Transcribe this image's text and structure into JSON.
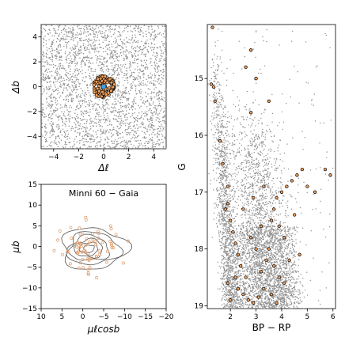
{
  "colors": {
    "field": "#8f8f8f",
    "member_fill": "#f4a05a",
    "member_edge": "#000000",
    "center_marker": "#3aa0e8",
    "contour": "#555555",
    "pm_member_edge": "#e39b68"
  },
  "chart_data": [
    {
      "id": "sky",
      "type": "scatter",
      "xlabel": "Δℓ",
      "ylabel": "Δb",
      "xlim": [
        -5,
        5
      ],
      "ylim": [
        -5,
        5
      ],
      "xticks": [
        "−4",
        "−2",
        "0",
        "2",
        "4"
      ],
      "yticks": [
        "−4",
        "−2",
        "0",
        "2",
        "4"
      ],
      "xtick_values": [
        -4,
        -2,
        0,
        2,
        4
      ],
      "ytick_values": [
        -4,
        -2,
        0,
        2,
        4
      ],
      "cluster_radius": 0.9
    },
    {
      "id": "pm",
      "type": "scatter",
      "title": "Minni 60 − Gaia",
      "xlabel": "μℓcosb",
      "ylabel": "μb",
      "xlim": [
        10,
        -20
      ],
      "ylim": [
        -15,
        15
      ],
      "xticks": [
        "10",
        "5",
        "0",
        "−5",
        "−10",
        "−15",
        "−20"
      ],
      "yticks": [
        "−15",
        "−10",
        "−5",
        "0",
        "5",
        "10",
        "15"
      ],
      "xtick_values": [
        10,
        5,
        0,
        -5,
        -10,
        -15,
        -20
      ],
      "ytick_values": [
        -15,
        -10,
        -5,
        0,
        5,
        10,
        15
      ],
      "contour_center": [
        -1.5,
        -0.5
      ]
    },
    {
      "id": "cmd",
      "type": "scatter",
      "xlabel": "BP − RP",
      "ylabel": "G",
      "xlim": [
        1.1,
        6.1
      ],
      "ylim": [
        19.05,
        14.05
      ],
      "xticks": [
        "2",
        "3",
        "4",
        "5",
        "6"
      ],
      "yticks": [
        "15",
        "16",
        "17",
        "18",
        "19"
      ],
      "xtick_values": [
        2,
        3,
        4,
        5,
        6
      ],
      "ytick_values": [
        15,
        16,
        17,
        18,
        19
      ],
      "members": [
        [
          1.3,
          14.1
        ],
        [
          1.25,
          15.1
        ],
        [
          1.35,
          15.15
        ],
        [
          1.4,
          15.4
        ],
        [
          2.8,
          14.5
        ],
        [
          2.6,
          14.8
        ],
        [
          3.0,
          15.0
        ],
        [
          2.8,
          15.6
        ],
        [
          3.5,
          15.4
        ],
        [
          1.6,
          16.1
        ],
        [
          1.7,
          16.5
        ],
        [
          1.9,
          16.9
        ],
        [
          1.8,
          17.3
        ],
        [
          2.0,
          17.5
        ],
        [
          2.1,
          17.7
        ],
        [
          2.2,
          17.9
        ],
        [
          2.3,
          18.1
        ],
        [
          2.4,
          18.3
        ],
        [
          2.2,
          18.5
        ],
        [
          2.3,
          18.7
        ],
        [
          2.5,
          18.8
        ],
        [
          2.7,
          18.9
        ],
        [
          2.9,
          18.95
        ],
        [
          3.1,
          18.85
        ],
        [
          3.3,
          18.7
        ],
        [
          3.2,
          18.4
        ],
        [
          3.4,
          18.2
        ],
        [
          3.0,
          18.0
        ],
        [
          2.8,
          17.8
        ],
        [
          3.6,
          17.5
        ],
        [
          3.7,
          17.3
        ],
        [
          3.8,
          17.1
        ],
        [
          4.0,
          17.0
        ],
        [
          4.2,
          16.9
        ],
        [
          4.4,
          16.8
        ],
        [
          4.6,
          16.7
        ],
        [
          4.8,
          16.6
        ],
        [
          5.0,
          16.9
        ],
        [
          5.3,
          17.0
        ],
        [
          5.7,
          16.6
        ],
        [
          5.9,
          16.7
        ],
        [
          3.9,
          17.6
        ],
        [
          4.1,
          17.8
        ],
        [
          3.5,
          18.0
        ],
        [
          3.7,
          18.3
        ],
        [
          3.9,
          18.5
        ],
        [
          4.1,
          18.6
        ],
        [
          3.6,
          18.8
        ],
        [
          3.8,
          18.95
        ],
        [
          2.6,
          18.5
        ],
        [
          2.0,
          18.9
        ],
        [
          1.9,
          18.6
        ],
        [
          2.5,
          17.3
        ],
        [
          2.9,
          17.1
        ],
        [
          3.3,
          16.9
        ],
        [
          4.5,
          17.4
        ],
        [
          4.7,
          18.1
        ],
        [
          4.3,
          18.2
        ],
        [
          1.9,
          17.2
        ],
        [
          3.2,
          17.6
        ]
      ]
    }
  ]
}
